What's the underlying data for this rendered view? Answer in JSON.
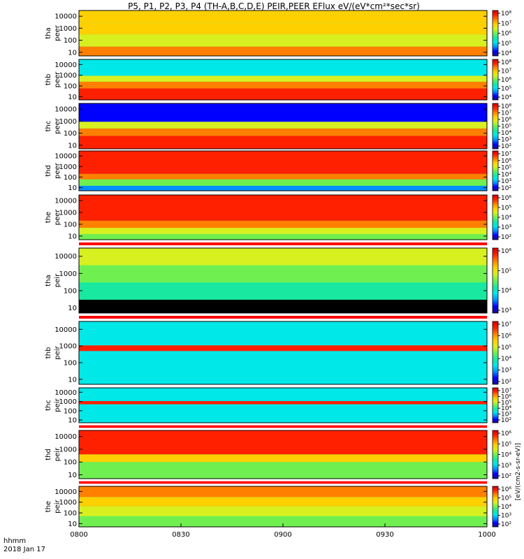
{
  "title": "P5, P1, P2, P3, P4 (TH-A,B,C,D,E) PEIR,PEER EFlux eV/(eV*cm²*sec*sr)",
  "footer": {
    "time_format_label": "hhmm",
    "date_label": "2018 Jan 17"
  },
  "colors": {
    "palette": [
      "#1d0f8c",
      "#0000ff",
      "#0090ff",
      "#00e8e8",
      "#18e8a0",
      "#70f050",
      "#d8f020",
      "#ffd000",
      "#ff8000",
      "#ff2000",
      "#d00000"
    ],
    "gap_color": "#ff0000",
    "fill_low": "#000000"
  },
  "chart_data": {
    "type": "heatmap",
    "x_ticks": [
      "0800",
      "0830",
      "0900",
      "0930",
      "1000"
    ],
    "x_tick_hours": [
      8.0,
      8.5,
      9.0,
      9.5,
      10.0
    ],
    "xlim_hours": [
      8.0,
      10.0
    ],
    "y_scale": "log",
    "ylim": [
      5,
      30000
    ],
    "y_ticks": [
      10,
      100,
      1000,
      10000
    ],
    "y_tick_labels": [
      "10",
      "100",
      "1000",
      "10000"
    ],
    "colorbar_label": "[eV/(cm2-s-sr-eV)]",
    "panels": [
      {
        "id": "tha-peer",
        "ylabel_1": "tha",
        "ylabel_2": "peer",
        "colorbar_ticks": [
          "10⁴",
          "10⁵",
          "10⁶",
          "10⁷",
          "10⁸"
        ],
        "bands": [
          {
            "y_low": 5,
            "y_high": 30,
            "level": 8
          },
          {
            "y_low": 30,
            "y_high": 300,
            "level": 6
          },
          {
            "y_low": 300,
            "y_high": 3000,
            "level": 7
          },
          {
            "y_low": 3000,
            "y_high": 30000,
            "level": 7
          }
        ]
      },
      {
        "id": "thb-peer",
        "ylabel_1": "thb",
        "ylabel_2": "peer",
        "colorbar_ticks": [
          "10⁴",
          "10⁵",
          "10⁶",
          "10⁷",
          "10⁸"
        ],
        "bands": [
          {
            "y_low": 5,
            "y_high": 60,
            "level": 9
          },
          {
            "y_low": 60,
            "y_high": 250,
            "level": 8
          },
          {
            "y_low": 250,
            "y_high": 900,
            "level": 6
          },
          {
            "y_low": 900,
            "y_high": 30000,
            "level": 3
          }
        ]
      },
      {
        "id": "thc-peer",
        "ylabel_1": "thc",
        "ylabel_2": "peer",
        "colorbar_ticks": [
          "10²",
          "10³",
          "10⁴",
          "10⁵",
          "10⁶",
          "10⁷",
          "10⁸"
        ],
        "bands": [
          {
            "y_low": 5,
            "y_high": 60,
            "level": 9
          },
          {
            "y_low": 60,
            "y_high": 250,
            "level": 8
          },
          {
            "y_low": 250,
            "y_high": 900,
            "level": 6
          },
          {
            "y_low": 900,
            "y_high": 30000,
            "level": 1
          }
        ]
      },
      {
        "id": "thd-peer",
        "ylabel_1": "thd",
        "ylabel_2": "peer",
        "colorbar_ticks": [
          "10²",
          "10³",
          "10⁴",
          "10⁵",
          "10⁶",
          "10⁷"
        ],
        "bands": [
          {
            "y_low": 5,
            "y_high": 15,
            "level": 2
          },
          {
            "y_low": 15,
            "y_high": 60,
            "level": 5
          },
          {
            "y_low": 60,
            "y_high": 200,
            "level": 8
          },
          {
            "y_low": 200,
            "y_high": 30000,
            "level": 9
          }
        ]
      },
      {
        "id": "the-peer",
        "ylabel_1": "the",
        "ylabel_2": "peer",
        "colorbar_ticks": [
          "10²",
          "10³",
          "10⁴",
          "10⁵",
          "10⁶"
        ],
        "bands": [
          {
            "y_low": 5,
            "y_high": 15,
            "level": 5
          },
          {
            "y_low": 15,
            "y_high": 50,
            "level": 6
          },
          {
            "y_low": 50,
            "y_high": 200,
            "level": 8
          },
          {
            "y_low": 200,
            "y_high": 30000,
            "level": 9
          }
        ]
      },
      {
        "id": "tha-peir",
        "ylabel_1": "tha",
        "ylabel_2": "peir",
        "colorbar_ticks": [
          "10³",
          "10⁴",
          "10⁵",
          "10⁶"
        ],
        "bands": [
          {
            "y_low": 5,
            "y_high": 30,
            "level": 0
          },
          {
            "y_low": 30,
            "y_high": 300,
            "level": 4
          },
          {
            "y_low": 300,
            "y_high": 3000,
            "level": 5
          },
          {
            "y_low": 3000,
            "y_high": 30000,
            "level": 6
          }
        ]
      },
      {
        "id": "thb-peir",
        "ylabel_1": "thb",
        "ylabel_2": "peir",
        "colorbar_ticks": [
          "10²",
          "10³",
          "10⁴",
          "10⁵",
          "10⁶",
          "10⁷"
        ],
        "bands": [
          {
            "y_low": 5,
            "y_high": 500,
            "level": 3
          },
          {
            "y_low": 500,
            "y_high": 1100,
            "level": 9
          },
          {
            "y_low": 1100,
            "y_high": 30000,
            "level": 3
          }
        ]
      },
      {
        "id": "thc-peir",
        "ylabel_1": "thc",
        "ylabel_2": "peir",
        "colorbar_ticks": [
          "10²",
          "10³",
          "10⁴",
          "10⁵",
          "10⁶",
          "10⁷"
        ],
        "bands": [
          {
            "y_low": 5,
            "y_high": 500,
            "level": 3
          },
          {
            "y_low": 500,
            "y_high": 1100,
            "level": 9
          },
          {
            "y_low": 1100,
            "y_high": 30000,
            "level": 3
          }
        ]
      },
      {
        "id": "thd-peir",
        "ylabel_1": "thd",
        "ylabel_2": "peir",
        "colorbar_ticks": [
          "10²",
          "10³",
          "10⁴",
          "10⁵",
          "10⁶"
        ],
        "bands": [
          {
            "y_low": 5,
            "y_high": 100,
            "level": 5
          },
          {
            "y_low": 100,
            "y_high": 400,
            "level": 7
          },
          {
            "y_low": 400,
            "y_high": 30000,
            "level": 9
          }
        ]
      },
      {
        "id": "the-peir",
        "ylabel_1": "the",
        "ylabel_2": "peir",
        "colorbar_ticks": [
          "10²",
          "10³",
          "10⁴",
          "10⁵",
          "10⁶"
        ],
        "bands": [
          {
            "y_low": 5,
            "y_high": 50,
            "level": 5
          },
          {
            "y_low": 50,
            "y_high": 400,
            "level": 6
          },
          {
            "y_low": 400,
            "y_high": 3000,
            "level": 7
          },
          {
            "y_low": 3000,
            "y_high": 30000,
            "level": 8
          }
        ]
      }
    ]
  }
}
